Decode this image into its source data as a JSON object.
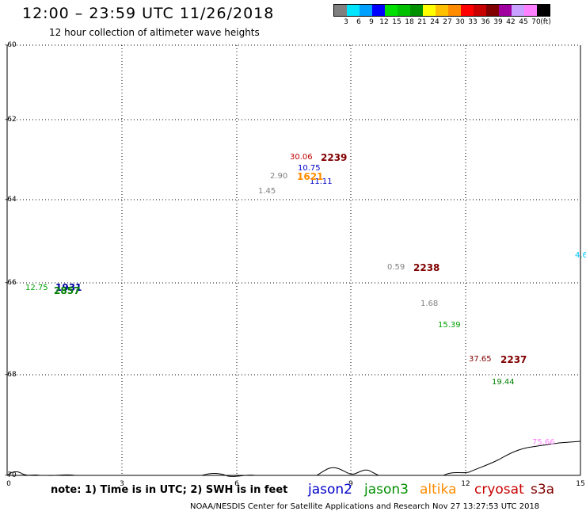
{
  "title": "12:00 – 23:59 UTC 11/26/2018",
  "subtitle": "12 hour collection of altimeter wave heights",
  "legend": {
    "colors": [
      "#808080",
      "#00e5ff",
      "#00a0ff",
      "#0000ff",
      "#00e000",
      "#00c000",
      "#009000",
      "#ffff00",
      "#ffc000",
      "#ff8c00",
      "#ff0000",
      "#c80000",
      "#800000",
      "#a000a0",
      "#c8a0ff",
      "#ff80ff",
      "#000000"
    ],
    "labels": [
      "3",
      "6",
      "9",
      "12",
      "15",
      "18",
      "21",
      "24",
      "27",
      "30",
      "33",
      "36",
      "39",
      "42",
      "45",
      "70",
      "(ft)"
    ]
  },
  "y_ticks": [
    "-60",
    "-62",
    "-64",
    "-66",
    "-68",
    "-70"
  ],
  "x_ticks": [
    "0",
    "3",
    "6",
    "9",
    "12",
    "15"
  ],
  "measurements": [
    {
      "text": "30.06",
      "color": "#c00000"
    },
    {
      "text": "10.75",
      "color": "#0000c8"
    },
    {
      "text": "2.90",
      "color": "#808080"
    },
    {
      "text": "11.11",
      "color": "#0000c8"
    },
    {
      "text": "1.45",
      "color": "#808080"
    },
    {
      "text": "0.59",
      "color": "#808080"
    },
    {
      "text": "1.68",
      "color": "#808080"
    },
    {
      "text": "15.39",
      "color": "#00a000"
    },
    {
      "text": "37.65",
      "color": "#800000"
    },
    {
      "text": "19.44",
      "color": "#008000"
    },
    {
      "text": "12.75",
      "color": "#00a000"
    },
    {
      "text": "4.6",
      "color": "#00c8ff"
    },
    {
      "text": "75.66",
      "color": "#ff80ff"
    }
  ],
  "orbit_labels": [
    {
      "text": "2239",
      "color": "#800000"
    },
    {
      "text": "1621",
      "color": "#ff8c00"
    },
    {
      "text": "2238",
      "color": "#800000"
    },
    {
      "text": "2237",
      "color": "#800000"
    },
    {
      "text": "1931",
      "color": "#0000a0"
    },
    {
      "text": "2857",
      "color": "#008000"
    }
  ],
  "note": "note: 1) Time is in UTC; 2) SWH is in feet",
  "satellites": [
    {
      "name": "jason2",
      "color": "#0000c8"
    },
    {
      "name": "jason3",
      "color": "#009000"
    },
    {
      "name": "altika",
      "color": "#ff8c00"
    },
    {
      "name": "cryosat",
      "color": "#c80000"
    },
    {
      "name": "s3a",
      "color": "#800000"
    }
  ],
  "credit": "NOAA/NESDIS Center for Satellite Applications and Research    Nov 27 13:27:53 UTC 2018"
}
